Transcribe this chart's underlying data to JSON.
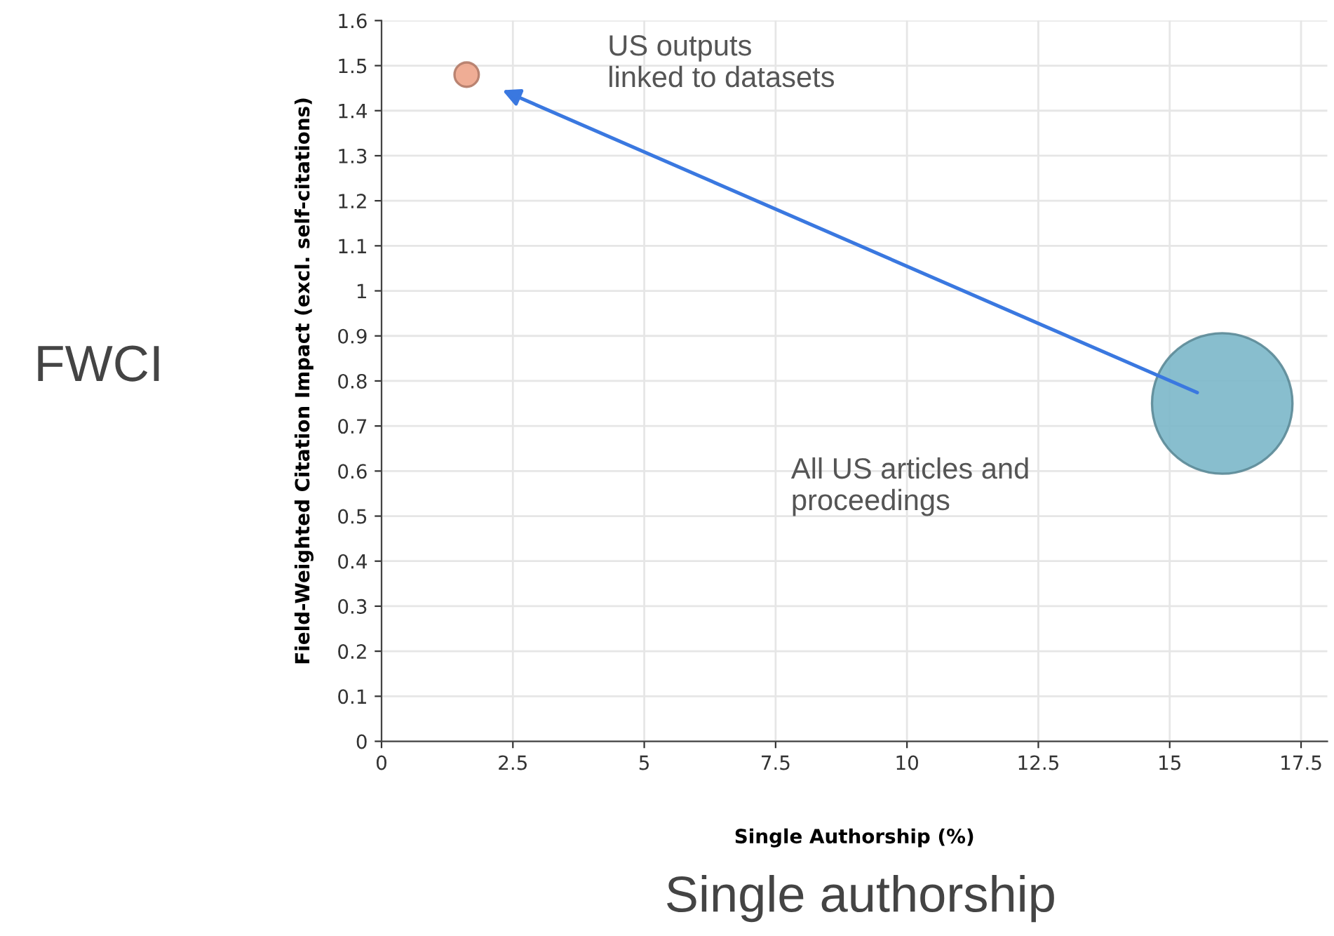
{
  "chart_data": {
    "type": "bubble",
    "xlabel": "Single Authorship (%)",
    "ylabel": "Field-Weighted Citation Impact (excl. self-citations)",
    "x": [
      1.62,
      16.0
    ],
    "values": [
      1.48,
      0.75
    ],
    "sizes": [
      0.03,
      1
    ],
    "colors": [
      "#eda48a",
      "#7bb7c9"
    ],
    "xlim": [
      0,
      18
    ],
    "ylim": [
      0,
      1.6
    ],
    "xticks": [
      0,
      2.5,
      5,
      7.5,
      10,
      12.5,
      15,
      17.5
    ],
    "yticks": [
      0,
      0.1,
      0.2,
      0.3,
      0.4,
      0.5,
      0.6,
      0.7,
      0.8,
      0.9,
      1,
      1.1,
      1.2,
      1.3,
      1.4,
      1.5,
      1.6
    ],
    "grid": true,
    "annotations": [
      "US outputs\nlinked to datasets",
      "All US articles and\nproceedings",
      "FWCI",
      "Single authorship"
    ]
  }
}
